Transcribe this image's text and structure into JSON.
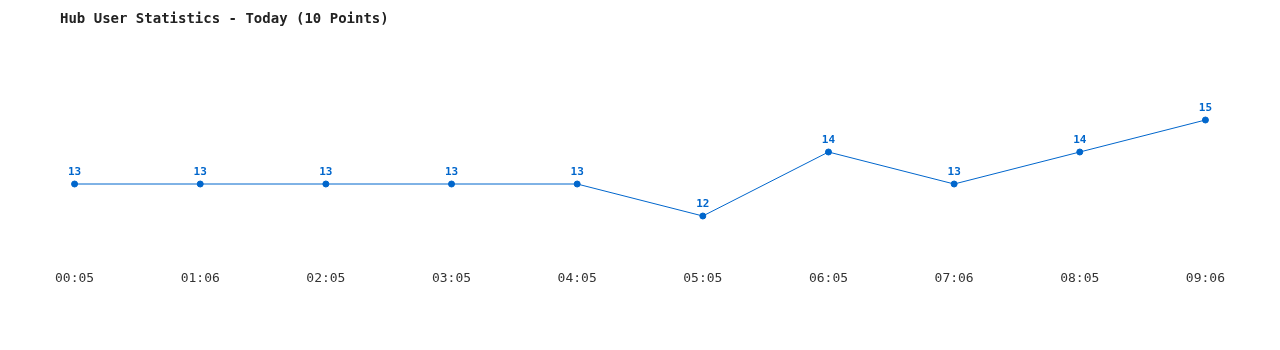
{
  "chart_data": {
    "type": "line",
    "title": "Hub User Statistics - Today (10 Points)",
    "categories": [
      "00:05",
      "01:06",
      "02:05",
      "03:05",
      "04:05",
      "05:05",
      "06:05",
      "07:06",
      "08:05",
      "09:06"
    ],
    "series": [
      {
        "color": "#0066cc",
        "values": [
          13,
          13,
          13,
          13,
          13,
          12,
          14,
          13,
          14,
          15
        ]
      }
    ],
    "data_labels": true,
    "tick_labels": "x",
    "grid": false,
    "legend": false,
    "marker": "circle",
    "line_style": "solid"
  }
}
